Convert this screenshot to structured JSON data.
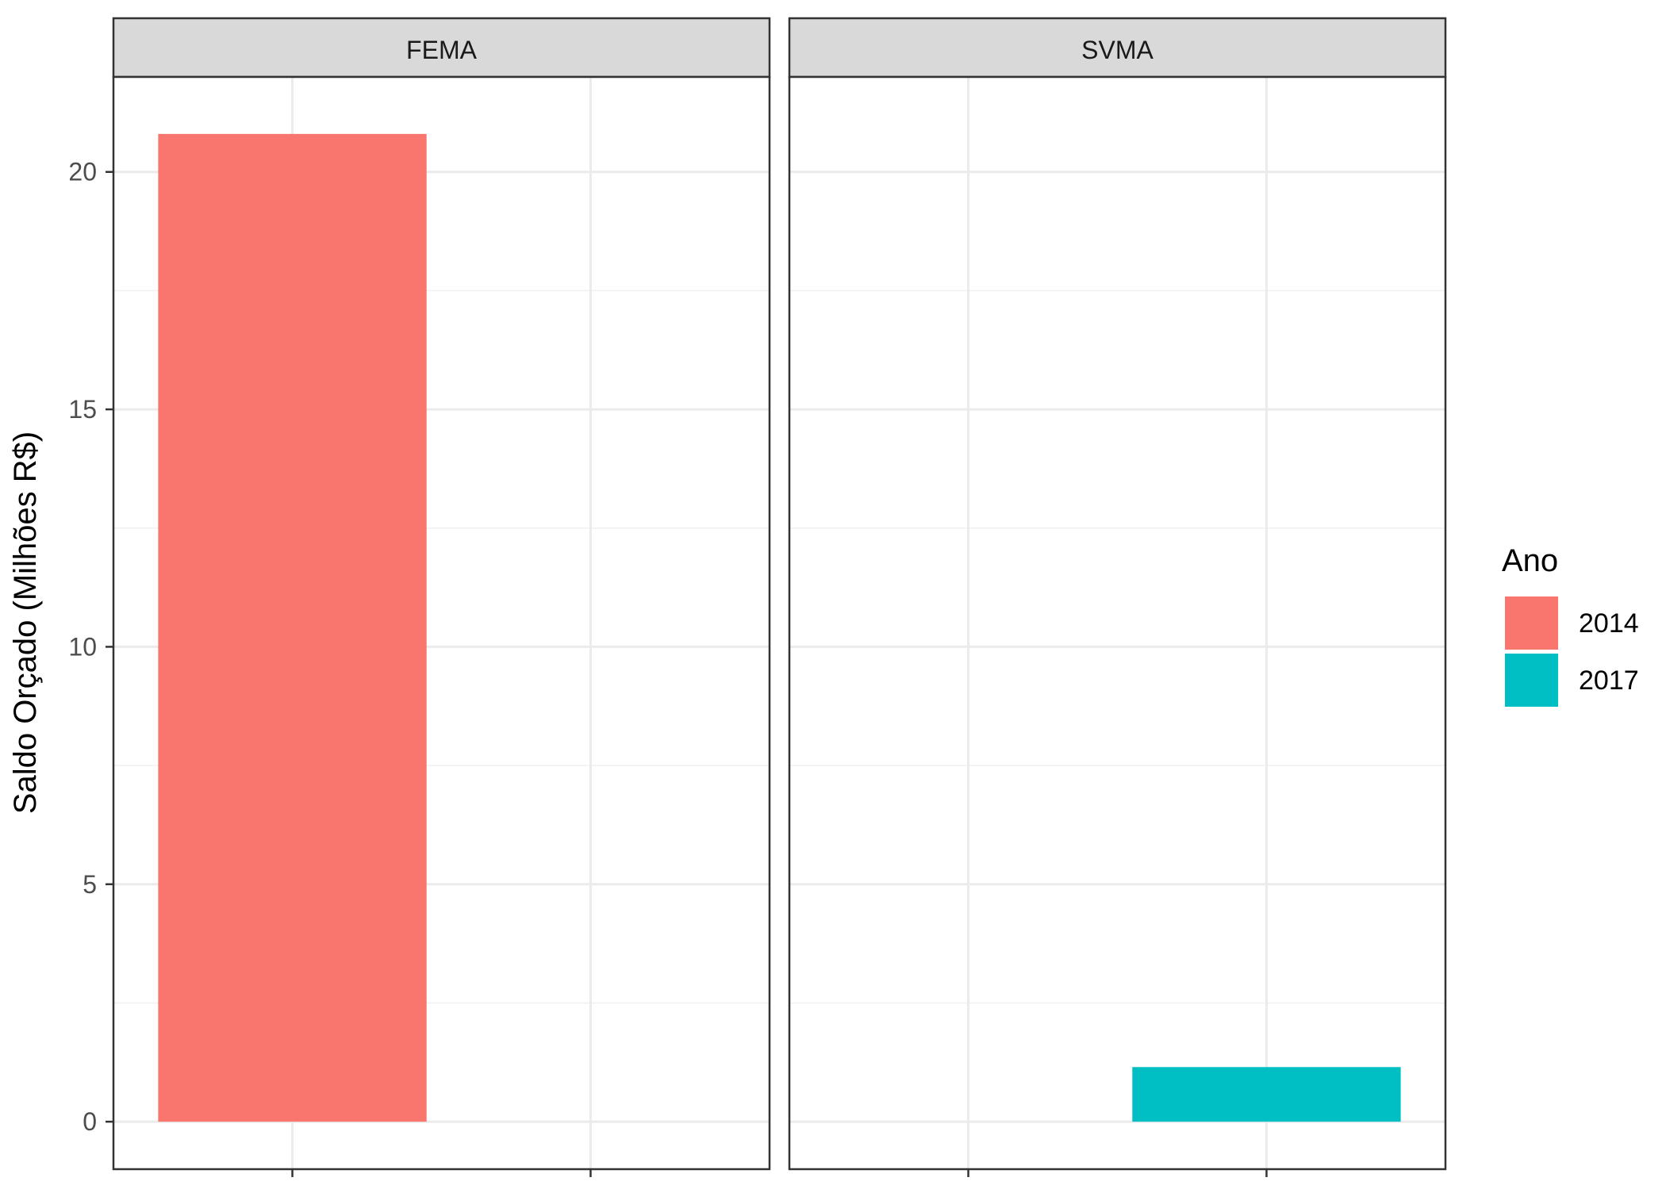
{
  "chart_data": {
    "type": "bar",
    "facet_labels": [
      "FEMA",
      "SVMA"
    ],
    "categories": [
      "2014",
      "2017"
    ],
    "series": [
      {
        "name": "2014",
        "color": "#F8766D",
        "values": {
          "FEMA": 20.8,
          "SVMA": null
        }
      },
      {
        "name": "2017",
        "color": "#00BFC4",
        "values": {
          "FEMA": null,
          "SVMA": 1.15
        }
      }
    ],
    "ylabel": "Saldo Orçado (Milhões R$)",
    "xlabel": "",
    "ylim": [
      -1.0,
      22.0
    ],
    "yticks": [
      0,
      5,
      10,
      15,
      20
    ],
    "ytick_labels": [
      "0",
      "5",
      "10",
      "15",
      "20"
    ],
    "grid": true,
    "legend": {
      "title": "Ano",
      "position": "right",
      "entries": [
        {
          "label": "2014",
          "color": "#F8766D"
        },
        {
          "label": "2017",
          "color": "#00BFC4"
        }
      ]
    }
  }
}
